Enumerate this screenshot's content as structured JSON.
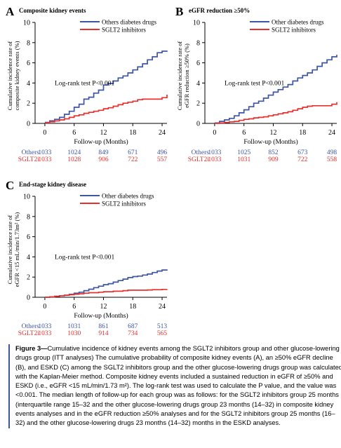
{
  "colors": {
    "others": "#3f56a5",
    "sglt2": "#e8312f"
  },
  "chart_data": [
    {
      "type": "line",
      "panel": "A",
      "title": "Composite kidney events",
      "ylabel_lines": [
        "Cumulative incidence rate of",
        "composite kidney events (%)"
      ],
      "xlabel": "Follow-up (Months)",
      "ylim": [
        0,
        10
      ],
      "yticks": [
        0,
        2,
        4,
        6,
        8,
        10
      ],
      "xlim": [
        -2,
        25
      ],
      "xticks": [
        0,
        6,
        12,
        18,
        24
      ],
      "annotation": "Log-rank test P<0.001",
      "series": [
        {
          "name": "Others diabetes drugs",
          "color": "#3f56a5",
          "x": [
            0,
            1,
            2,
            3,
            4,
            5,
            6,
            7,
            8,
            9,
            10,
            11,
            12,
            13,
            14,
            15,
            16,
            17,
            18,
            19,
            20,
            21,
            22,
            23,
            24,
            25
          ],
          "y": [
            0.1,
            0.25,
            0.4,
            0.6,
            0.9,
            1.2,
            1.6,
            1.9,
            2.4,
            2.6,
            3.0,
            3.3,
            3.8,
            3.95,
            4.2,
            4.5,
            4.7,
            5.0,
            5.3,
            5.6,
            5.9,
            6.3,
            6.6,
            7.0,
            7.15,
            7.2
          ]
        },
        {
          "name": "SGLT2 inhibitors",
          "color": "#e8312f",
          "x": [
            0,
            1,
            2,
            3,
            4,
            5,
            6,
            7,
            8,
            9,
            10,
            11,
            12,
            13,
            14,
            15,
            16,
            17,
            18,
            19,
            20,
            21,
            22,
            23,
            24,
            25
          ],
          "y": [
            0.05,
            0.15,
            0.25,
            0.35,
            0.45,
            0.6,
            0.75,
            0.85,
            1.0,
            1.1,
            1.2,
            1.3,
            1.45,
            1.55,
            1.7,
            1.85,
            2.0,
            2.1,
            2.2,
            2.35,
            2.4,
            2.4,
            2.4,
            2.4,
            2.55,
            2.85
          ]
        }
      ],
      "risk_table": {
        "rows": [
          {
            "label": "Others",
            "color": "#3f56a5",
            "values": [
              "1033",
              "1024",
              "849",
              "671",
              "496"
            ]
          },
          {
            "label": "SGLT2i",
            "color": "#e8312f",
            "values": [
              "1033",
              "1028",
              "906",
              "722",
              "557"
            ]
          }
        ]
      }
    },
    {
      "type": "line",
      "panel": "B",
      "title": "eGFR reduction ≥50%",
      "ylabel_lines": [
        "Cumulative incidence rate of",
        "eGFR reduction ≥50% (%)"
      ],
      "xlabel": "Follow-up (Months)",
      "ylim": [
        0,
        10
      ],
      "yticks": [
        0,
        2,
        4,
        6,
        8,
        10
      ],
      "xlim": [
        -2,
        25
      ],
      "xticks": [
        0,
        6,
        12,
        18,
        24
      ],
      "annotation": "Log-rank test P<0.001",
      "series": [
        {
          "name": "Other diabetes drugs",
          "color": "#3f56a5",
          "x": [
            0,
            1,
            2,
            3,
            4,
            5,
            6,
            7,
            8,
            9,
            10,
            11,
            12,
            13,
            14,
            15,
            16,
            17,
            18,
            19,
            20,
            21,
            22,
            23,
            24,
            25
          ],
          "y": [
            0.05,
            0.2,
            0.35,
            0.5,
            0.75,
            1.05,
            1.35,
            1.65,
            2.0,
            2.2,
            2.5,
            2.8,
            3.1,
            3.35,
            3.6,
            3.85,
            4.2,
            4.5,
            4.75,
            5.0,
            5.3,
            5.65,
            6.0,
            6.3,
            6.6,
            6.8
          ]
        },
        {
          "name": "SGLT2 inhibitors",
          "color": "#e8312f",
          "x": [
            0,
            1,
            2,
            3,
            4,
            5,
            6,
            7,
            8,
            9,
            10,
            11,
            12,
            13,
            14,
            15,
            16,
            17,
            18,
            19,
            20,
            21,
            22,
            23,
            24,
            25
          ],
          "y": [
            0.0,
            0.05,
            0.1,
            0.15,
            0.2,
            0.3,
            0.4,
            0.45,
            0.55,
            0.6,
            0.65,
            0.75,
            0.85,
            0.95,
            1.05,
            1.15,
            1.3,
            1.45,
            1.6,
            1.7,
            1.75,
            1.75,
            1.75,
            1.75,
            1.9,
            2.1
          ]
        }
      ],
      "risk_table": {
        "rows": [
          {
            "label": "Others",
            "color": "#3f56a5",
            "values": [
              "1033",
              "1025",
              "852",
              "673",
              "498"
            ]
          },
          {
            "label": "SGLT2i",
            "color": "#e8312f",
            "values": [
              "1033",
              "1031",
              "909",
              "722",
              "558"
            ]
          }
        ]
      }
    },
    {
      "type": "line",
      "panel": "C",
      "title": "End-stage kidney disease",
      "ylabel_lines": [
        "Cumulative incidence rate of",
        "eGFR <15 mL/min/1.73m² (%)"
      ],
      "xlabel": "Follow-up (Months)",
      "ylim": [
        0,
        10
      ],
      "yticks": [
        0,
        2,
        4,
        6,
        8,
        10
      ],
      "xlim": [
        -2,
        25
      ],
      "xticks": [
        0,
        6,
        12,
        18,
        24
      ],
      "annotation": "Log-rank test P<0.001",
      "series": [
        {
          "name": "Other diabetes drugs",
          "color": "#3f56a5",
          "x": [
            0,
            1,
            2,
            3,
            4,
            5,
            6,
            7,
            8,
            9,
            10,
            11,
            12,
            13,
            14,
            15,
            16,
            17,
            18,
            19,
            20,
            21,
            22,
            23,
            24,
            25
          ],
          "y": [
            0.0,
            0.05,
            0.1,
            0.15,
            0.2,
            0.3,
            0.4,
            0.5,
            0.65,
            0.8,
            0.95,
            1.1,
            1.25,
            1.35,
            1.5,
            1.65,
            1.8,
            1.95,
            2.05,
            2.1,
            2.2,
            2.3,
            2.45,
            2.6,
            2.7,
            2.75
          ]
        },
        {
          "name": "SGLT2 inhibitors",
          "color": "#e8312f",
          "x": [
            0,
            1,
            2,
            3,
            4,
            5,
            6,
            7,
            8,
            9,
            10,
            11,
            12,
            13,
            14,
            15,
            16,
            17,
            18,
            19,
            20,
            21,
            22,
            23,
            24,
            25
          ],
          "y": [
            0.0,
            0.05,
            0.1,
            0.15,
            0.2,
            0.25,
            0.3,
            0.35,
            0.4,
            0.45,
            0.45,
            0.5,
            0.55,
            0.55,
            0.6,
            0.6,
            0.65,
            0.7,
            0.7,
            0.7,
            0.7,
            0.72,
            0.75,
            0.75,
            0.78,
            0.8
          ]
        }
      ],
      "risk_table": {
        "rows": [
          {
            "label": "Others",
            "color": "#3f56a5",
            "values": [
              "1033",
              "1031",
              "861",
              "687",
              "513"
            ]
          },
          {
            "label": "SGLT2i",
            "color": "#e8312f",
            "values": [
              "1033",
              "1030",
              "914",
              "734",
              "565"
            ]
          }
        ]
      }
    }
  ],
  "caption": {
    "lead": "Figure 3—",
    "text": "Cumulative incidence of kidney events among the SGLT2 inhibitors group and other glucose-lowering drugs group (ITT analyses) The cumulative probability of composite kidney events (A), an ≥50% eGFR decline (B), and ESKD (C) among the SGLT2 inhibitors group and the other glucose-lowering drugs group was calculated with the Kaplan-Meier method. Composite kidney events included a sustained reduction in eGFR of ≥50% and ESKD (i.e., eGFR <15 mL/min/1.73 m²). The log-rank test was used to calculate the P value, and the value was <0.001. The median length of follow-up for each group was as follows: for the SGLT2 inhibitors group 25 months (interquartile range 15–32 and the other glucose-lowering drugs group 23 months (14–32) in composite kidney events analyses and in the eGFR reduction ≥50% analyses and for the SGLT2 inhibitors group 25 months (16–32) and the other glucose-lowering drugs 23 months (14–32) months in the ESKD analyses."
  }
}
